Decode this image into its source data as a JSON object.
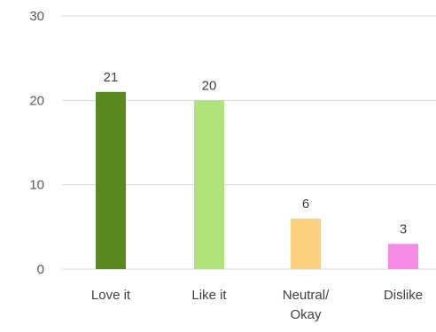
{
  "chart_data": {
    "type": "bar",
    "categories": [
      [
        "Love it"
      ],
      [
        "Like it"
      ],
      [
        "Neutral/",
        "Okay"
      ],
      [
        "Dislike"
      ]
    ],
    "values": [
      21,
      20,
      6,
      3
    ],
    "data_labels": [
      "21",
      "20",
      "6",
      "3"
    ],
    "colors": [
      "#5a8a1f",
      "#b2e27a",
      "#fbd07f",
      "#f58be4"
    ],
    "yticks": [
      "0",
      "10",
      "20",
      "30"
    ],
    "ylim": [
      0,
      30
    ],
    "grid": true,
    "legend": "none"
  }
}
